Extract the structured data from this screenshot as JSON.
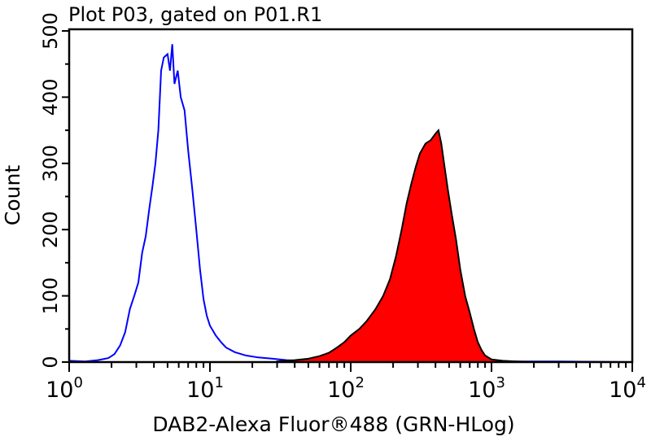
{
  "chart_data": {
    "type": "area",
    "title": "Plot P03, gated on P01.R1",
    "xlabel": "DAB2-Alexa Fluor®488 (GRN-HLog)",
    "ylabel": "Count",
    "x_scale": "log",
    "xlim": [
      1,
      10000
    ],
    "ylim": [
      0,
      500
    ],
    "x_ticks": [
      {
        "base": "10",
        "exp": "0",
        "value": 1
      },
      {
        "base": "10",
        "exp": "1",
        "value": 10
      },
      {
        "base": "10",
        "exp": "2",
        "value": 100
      },
      {
        "base": "10",
        "exp": "3",
        "value": 1000
      },
      {
        "base": "10",
        "exp": "4",
        "value": 10000
      }
    ],
    "y_ticks": [
      "0",
      "100",
      "200",
      "300",
      "400",
      "500"
    ],
    "grid": false,
    "series": [
      {
        "style": "outline",
        "color": "#0000ff",
        "points": [
          [
            1,
            2
          ],
          [
            1.3,
            1
          ],
          [
            1.6,
            3
          ],
          [
            1.9,
            6
          ],
          [
            2.1,
            12
          ],
          [
            2.3,
            25
          ],
          [
            2.5,
            45
          ],
          [
            2.7,
            80
          ],
          [
            2.9,
            100
          ],
          [
            3.1,
            120
          ],
          [
            3.3,
            165
          ],
          [
            3.5,
            190
          ],
          [
            3.7,
            230
          ],
          [
            3.9,
            265
          ],
          [
            4.1,
            300
          ],
          [
            4.3,
            350
          ],
          [
            4.5,
            440
          ],
          [
            4.7,
            460
          ],
          [
            5.0,
            465
          ],
          [
            5.2,
            440
          ],
          [
            5.4,
            480
          ],
          [
            5.6,
            420
          ],
          [
            5.9,
            440
          ],
          [
            6.2,
            400
          ],
          [
            6.6,
            380
          ],
          [
            7.0,
            320
          ],
          [
            7.5,
            260
          ],
          [
            8.0,
            200
          ],
          [
            8.5,
            140
          ],
          [
            9.0,
            95
          ],
          [
            9.5,
            70
          ],
          [
            10,
            55
          ],
          [
            11,
            40
          ],
          [
            12,
            30
          ],
          [
            13,
            22
          ],
          [
            15,
            15
          ],
          [
            18,
            10
          ],
          [
            22,
            7
          ],
          [
            28,
            5
          ],
          [
            35,
            3
          ],
          [
            45,
            2
          ],
          [
            60,
            1
          ],
          [
            100,
            1
          ],
          [
            300,
            1
          ],
          [
            1000,
            1
          ],
          [
            3000,
            1
          ],
          [
            10000,
            0
          ]
        ]
      },
      {
        "style": "filled",
        "color": "#ff0000",
        "outline": "#000000",
        "points": [
          [
            30,
            1
          ],
          [
            40,
            3
          ],
          [
            50,
            5
          ],
          [
            60,
            9
          ],
          [
            70,
            14
          ],
          [
            80,
            22
          ],
          [
            90,
            30
          ],
          [
            100,
            40
          ],
          [
            115,
            50
          ],
          [
            130,
            62
          ],
          [
            150,
            80
          ],
          [
            170,
            100
          ],
          [
            190,
            125
          ],
          [
            210,
            160
          ],
          [
            230,
            200
          ],
          [
            250,
            240
          ],
          [
            270,
            270
          ],
          [
            290,
            295
          ],
          [
            310,
            315
          ],
          [
            340,
            330
          ],
          [
            370,
            335
          ],
          [
            400,
            345
          ],
          [
            420,
            350
          ],
          [
            440,
            330
          ],
          [
            460,
            300
          ],
          [
            490,
            260
          ],
          [
            520,
            225
          ],
          [
            560,
            185
          ],
          [
            600,
            140
          ],
          [
            650,
            100
          ],
          [
            700,
            75
          ],
          [
            750,
            50
          ],
          [
            800,
            30
          ],
          [
            850,
            18
          ],
          [
            900,
            10
          ],
          [
            1000,
            4
          ],
          [
            1200,
            2
          ],
          [
            1500,
            1
          ],
          [
            2000,
            0
          ]
        ]
      }
    ]
  }
}
